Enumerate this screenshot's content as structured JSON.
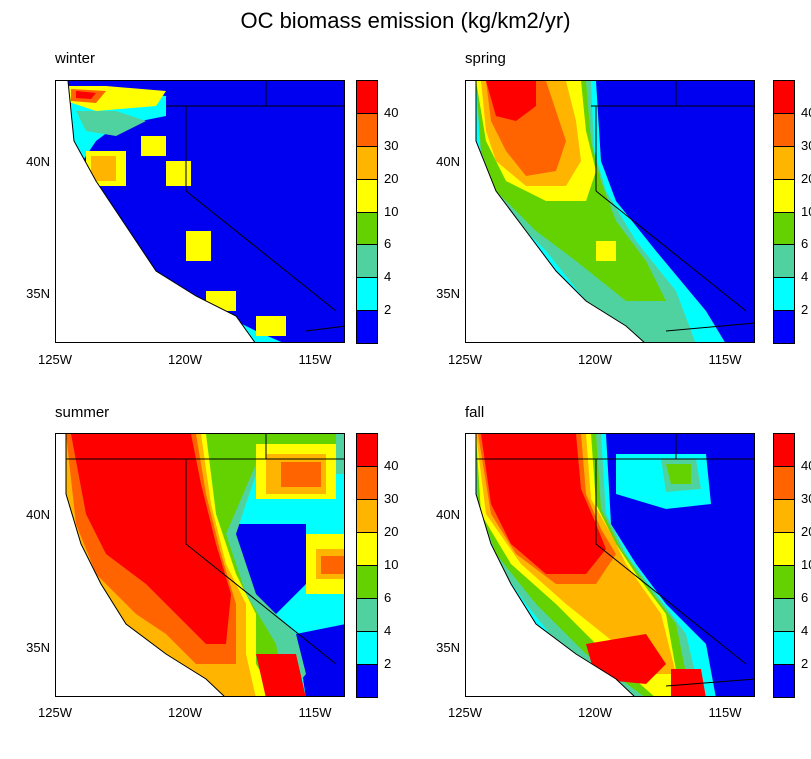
{
  "title": "OC biomass emission (kg/km2/yr)",
  "colorbar": {
    "labels": [
      "40",
      "30",
      "20",
      "10",
      "6",
      "4",
      "2"
    ],
    "colors": [
      "#ff0000",
      "#ff6400",
      "#ffb400",
      "#ffff00",
      "#64d200",
      "#50d2a0",
      "#00ffff",
      "#0000ff"
    ]
  },
  "axes": {
    "lat_labels": [
      "40N",
      "35N"
    ],
    "lon_labels": [
      "125W",
      "120W",
      "115W"
    ]
  },
  "panels": [
    {
      "title": "winter"
    },
    {
      "title": "spring"
    },
    {
      "title": "summer"
    },
    {
      "title": "fall"
    }
  ],
  "chart_data": {
    "type": "heatmap",
    "title": "OC biomass emission (kg/km2/yr)",
    "panels": [
      "winter",
      "spring",
      "summer",
      "fall"
    ],
    "levels": [
      2,
      4,
      6,
      10,
      20,
      30,
      40
    ],
    "x_ticks": [
      "125W",
      "120W",
      "115W"
    ],
    "y_ticks": [
      "40N",
      "35N"
    ]
  }
}
